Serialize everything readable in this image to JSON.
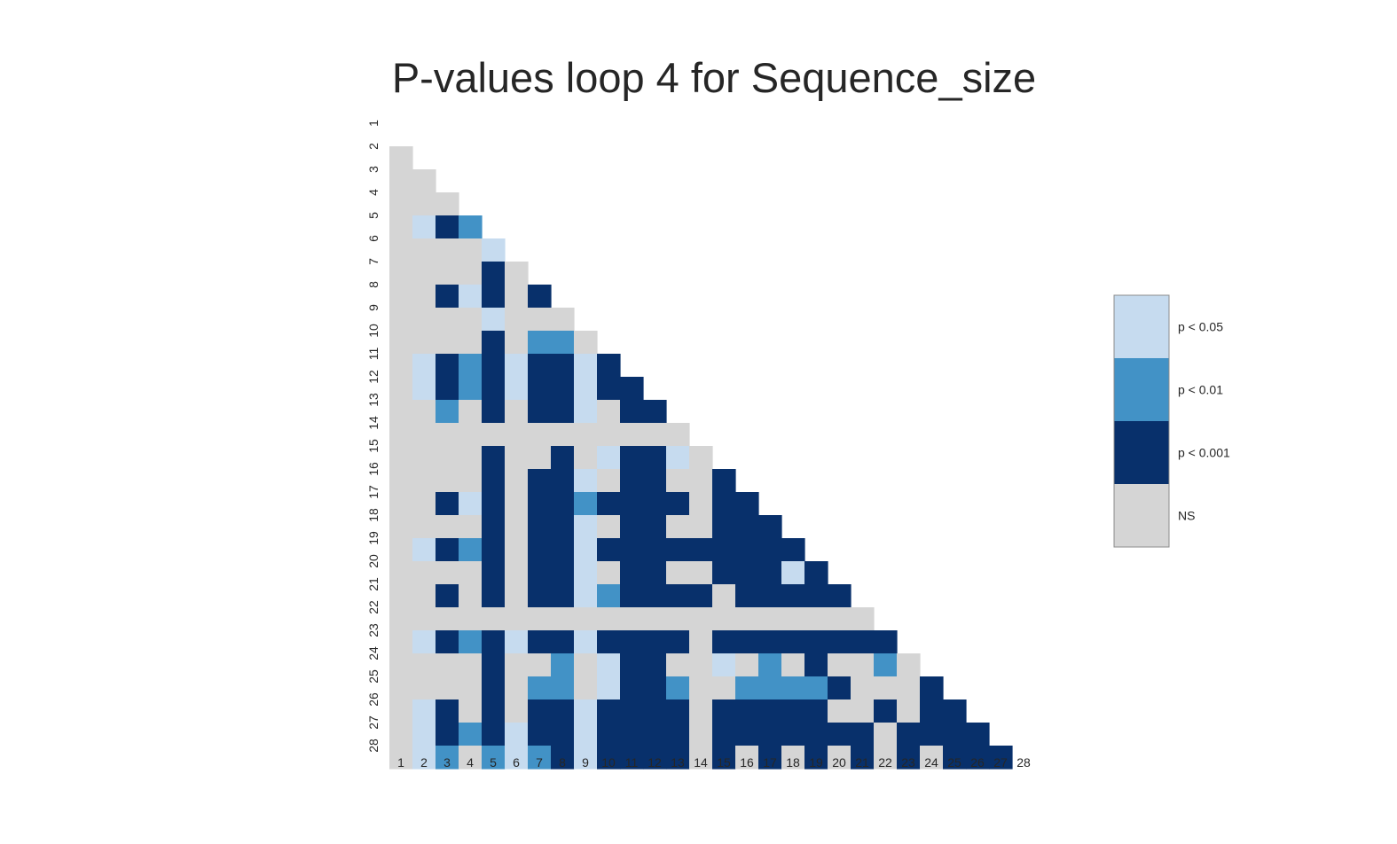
{
  "chart_data": {
    "type": "heatmap",
    "title": "P-values loop 4 for Sequence_size",
    "row_labels": [
      "1",
      "2",
      "3",
      "4",
      "5",
      "6",
      "7",
      "8",
      "9",
      "10",
      "11",
      "12",
      "13",
      "14",
      "15",
      "16",
      "17",
      "18",
      "19",
      "20",
      "21",
      "22",
      "23",
      "24",
      "25",
      "26",
      "27",
      "28"
    ],
    "col_labels": [
      "1",
      "2",
      "3",
      "4",
      "5",
      "6",
      "7",
      "8",
      "9",
      "10",
      "11",
      "12",
      "13",
      "14",
      "15",
      "16",
      "17",
      "18",
      "19",
      "20",
      "21",
      "22",
      "23",
      "24",
      "25",
      "26",
      "27",
      "28"
    ],
    "mask": "upper-triangle-including-diagonal",
    "categories": [
      "p < 0.05",
      "p < 0.01",
      "p < 0.001",
      "NS"
    ],
    "colors": {
      "p < 0.05": "#c6dbef",
      "p < 0.01": "#4292c6",
      "p < 0.001": "#08306b",
      "NS": "#d5d5d5"
    },
    "code_key": {
      "0": "NS",
      "1": "p < 0.05",
      "2": "p < 0.01",
      "3": "p < 0.001"
    },
    "matrix": [
      "",
      "0",
      "00",
      "000",
      "0132",
      "00001",
      "000030",
      "0031303",
      "00001000",
      "000030220",
      "0132313313",
      "01323133133",
      "002030331033",
      "0000000000000",
      "00003003013310",
      "000030331033003",
      "0031303323333033",
      "00003033103300333",
      "013230331333333333",
      "0000303310330033313",
      "00303033123333033333",
      "000000000000000000000",
      "0132313313333033333333",
      "00003002013300102030020",
      "000030220133200222230003",
      "0130303313333033333003033",
      "01323133133330333333303333",
      "012021231333303030303030333"
    ],
    "legend": {
      "items": [
        {
          "label": "p < 0.05",
          "color": "#c6dbef"
        },
        {
          "label": "p < 0.01",
          "color": "#4292c6"
        },
        {
          "label": "p < 0.001",
          "color": "#08306b"
        },
        {
          "label": "NS",
          "color": "#d5d5d5"
        }
      ]
    }
  }
}
